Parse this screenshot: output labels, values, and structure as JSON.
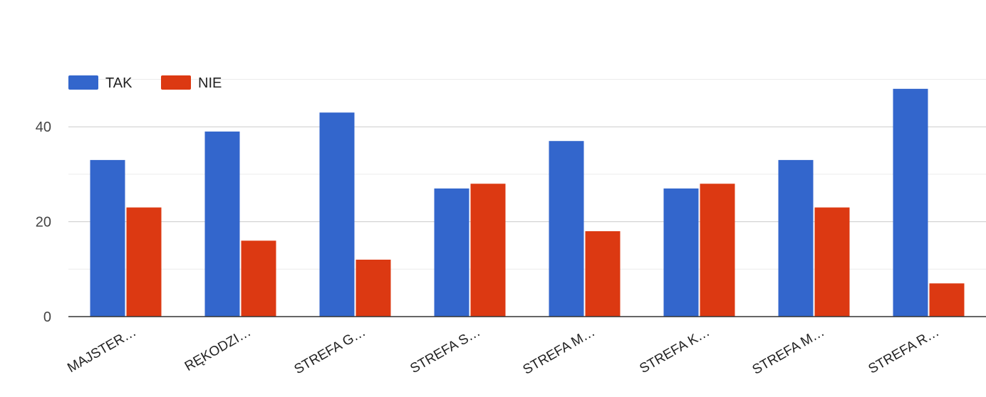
{
  "chart_data": {
    "type": "bar",
    "categories": [
      "MAJSTER…",
      "RĘKODZI…",
      "STREFA G…",
      "STREFA S…",
      "STREFA M…",
      "STREFA K…",
      "STREFA M…",
      "STREFA R…"
    ],
    "series": [
      {
        "name": "TAK",
        "color": "#3366cc",
        "values": [
          33,
          39,
          43,
          27,
          37,
          27,
          33,
          48
        ]
      },
      {
        "name": "NIE",
        "color": "#dc3912",
        "values": [
          23,
          16,
          12,
          28,
          18,
          28,
          23,
          7
        ]
      }
    ],
    "yticks": [
      0,
      20,
      40
    ],
    "ylim": [
      0,
      50
    ],
    "grid": true,
    "legend_position": "top-left",
    "title": "",
    "xlabel": "",
    "ylabel": ""
  }
}
